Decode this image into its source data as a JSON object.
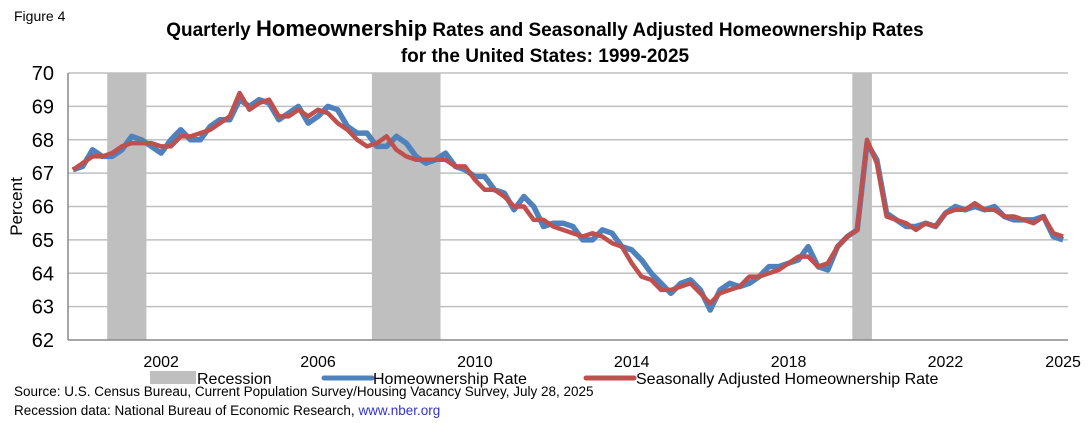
{
  "figure_label": "Figure 4",
  "title": {
    "part1": "Quarterly ",
    "emphasis": "Homeownership",
    "part2": " Rates and Seasonally Adjusted Homeownership Rates",
    "line2": "for the United States: 1999-2025"
  },
  "source": {
    "line1": "Source: U.S. Census Bureau, Current Population Survey/Housing Vacancy Survey, July 28, 2025",
    "line2_prefix": "Recession data: National Bureau of Economic Research, ",
    "link": "www.nber.org"
  },
  "chart_data": {
    "type": "line",
    "title": "Quarterly Homeownership Rates and Seasonally Adjusted Homeownership Rates for the United States: 1999-2025",
    "xlabel": "",
    "ylabel": "Percent",
    "ylim": [
      62,
      70
    ],
    "yticks": [
      62,
      63,
      64,
      65,
      66,
      67,
      68,
      69,
      70
    ],
    "xtick_labels": [
      "2002",
      "2006",
      "2010",
      "2014",
      "2018",
      "2022",
      "2025"
    ],
    "grid": true,
    "legend_position": "bottom",
    "legend": [
      "Recession",
      "Homeownership Rate",
      "Seasonally Adjusted Homeownership Rate"
    ],
    "colors": {
      "recession": "#bfbfbf",
      "homeownership": "#4f81bd",
      "seasonally_adjusted": "#c0504d",
      "grid": "#bfbfbf"
    },
    "recessions": [
      {
        "start": "2001Q1",
        "end": "2001Q4"
      },
      {
        "start": "2007Q4",
        "end": "2009Q2"
      },
      {
        "start": "2020Q1",
        "end": "2020Q2"
      }
    ],
    "x": [
      "2000Q1",
      "2000Q2",
      "2000Q3",
      "2000Q4",
      "2001Q1",
      "2001Q2",
      "2001Q3",
      "2001Q4",
      "2002Q1",
      "2002Q2",
      "2002Q3",
      "2002Q4",
      "2003Q1",
      "2003Q2",
      "2003Q3",
      "2003Q4",
      "2004Q1",
      "2004Q2",
      "2004Q3",
      "2004Q4",
      "2005Q1",
      "2005Q2",
      "2005Q3",
      "2005Q4",
      "2006Q1",
      "2006Q2",
      "2006Q3",
      "2006Q4",
      "2007Q1",
      "2007Q2",
      "2007Q3",
      "2007Q4",
      "2008Q1",
      "2008Q2",
      "2008Q3",
      "2008Q4",
      "2009Q1",
      "2009Q2",
      "2009Q3",
      "2009Q4",
      "2010Q1",
      "2010Q2",
      "2010Q3",
      "2010Q4",
      "2011Q1",
      "2011Q2",
      "2011Q3",
      "2011Q4",
      "2012Q1",
      "2012Q2",
      "2012Q3",
      "2012Q4",
      "2013Q1",
      "2013Q2",
      "2013Q3",
      "2013Q4",
      "2014Q1",
      "2014Q2",
      "2014Q3",
      "2014Q4",
      "2015Q1",
      "2015Q2",
      "2015Q3",
      "2015Q4",
      "2016Q1",
      "2016Q2",
      "2016Q3",
      "2016Q4",
      "2017Q1",
      "2017Q2",
      "2017Q3",
      "2017Q4",
      "2018Q1",
      "2018Q2",
      "2018Q3",
      "2018Q4",
      "2019Q1",
      "2019Q2",
      "2019Q3",
      "2019Q4",
      "2020Q1",
      "2020Q2",
      "2020Q3",
      "2020Q4",
      "2021Q1",
      "2021Q2",
      "2021Q3",
      "2021Q4",
      "2022Q1",
      "2022Q2",
      "2022Q3",
      "2022Q4",
      "2023Q1",
      "2023Q2",
      "2023Q3",
      "2023Q4",
      "2024Q1",
      "2024Q2",
      "2024Q3",
      "2024Q4",
      "2025Q1",
      "2025Q2"
    ],
    "series": [
      {
        "name": "Homeownership Rate",
        "values": [
          67.1,
          67.2,
          67.7,
          67.5,
          67.5,
          67.7,
          68.1,
          68.0,
          67.8,
          67.6,
          68.0,
          68.3,
          68.0,
          68.0,
          68.4,
          68.6,
          68.6,
          69.2,
          69.0,
          69.2,
          69.1,
          68.6,
          68.8,
          69.0,
          68.5,
          68.7,
          69.0,
          68.9,
          68.4,
          68.2,
          68.2,
          67.8,
          67.8,
          68.1,
          67.9,
          67.5,
          67.3,
          67.4,
          67.6,
          67.2,
          67.1,
          66.9,
          66.9,
          66.5,
          66.4,
          65.9,
          66.3,
          66.0,
          65.4,
          65.5,
          65.5,
          65.4,
          65.0,
          65.0,
          65.3,
          65.2,
          64.8,
          64.7,
          64.4,
          64.0,
          63.7,
          63.4,
          63.7,
          63.8,
          63.5,
          62.9,
          63.5,
          63.7,
          63.6,
          63.7,
          63.9,
          64.2,
          64.2,
          64.3,
          64.4,
          64.8,
          64.2,
          64.1,
          64.8,
          65.1,
          65.3,
          67.9,
          67.4,
          65.8,
          65.6,
          65.4,
          65.4,
          65.5,
          65.4,
          65.8,
          66.0,
          65.9,
          66.0,
          65.9,
          66.0,
          65.7,
          65.6,
          65.6,
          65.6,
          65.7,
          65.1,
          65.0
        ]
      },
      {
        "name": "Seasonally Adjusted Homeownership Rate",
        "values": [
          67.1,
          67.3,
          67.5,
          67.5,
          67.6,
          67.8,
          67.9,
          67.9,
          67.9,
          67.8,
          67.8,
          68.1,
          68.1,
          68.2,
          68.3,
          68.5,
          68.7,
          69.4,
          68.9,
          69.1,
          69.2,
          68.7,
          68.7,
          68.9,
          68.7,
          68.9,
          68.8,
          68.5,
          68.3,
          68.0,
          67.8,
          67.9,
          68.1,
          67.7,
          67.5,
          67.4,
          67.4,
          67.4,
          67.4,
          67.2,
          67.2,
          66.8,
          66.5,
          66.5,
          66.3,
          66.0,
          66.0,
          65.6,
          65.6,
          65.4,
          65.3,
          65.2,
          65.1,
          65.2,
          65.1,
          64.9,
          64.8,
          64.3,
          63.9,
          63.8,
          63.5,
          63.5,
          63.6,
          63.7,
          63.4,
          63.1,
          63.4,
          63.5,
          63.6,
          63.9,
          63.9,
          64.0,
          64.1,
          64.3,
          64.5,
          64.5,
          64.2,
          64.3,
          64.8,
          65.1,
          65.3,
          68.0,
          67.3,
          65.7,
          65.6,
          65.5,
          65.3,
          65.5,
          65.4,
          65.8,
          65.9,
          65.9,
          66.1,
          65.9,
          65.9,
          65.7,
          65.7,
          65.6,
          65.5,
          65.7,
          65.2,
          65.1
        ]
      }
    ]
  }
}
